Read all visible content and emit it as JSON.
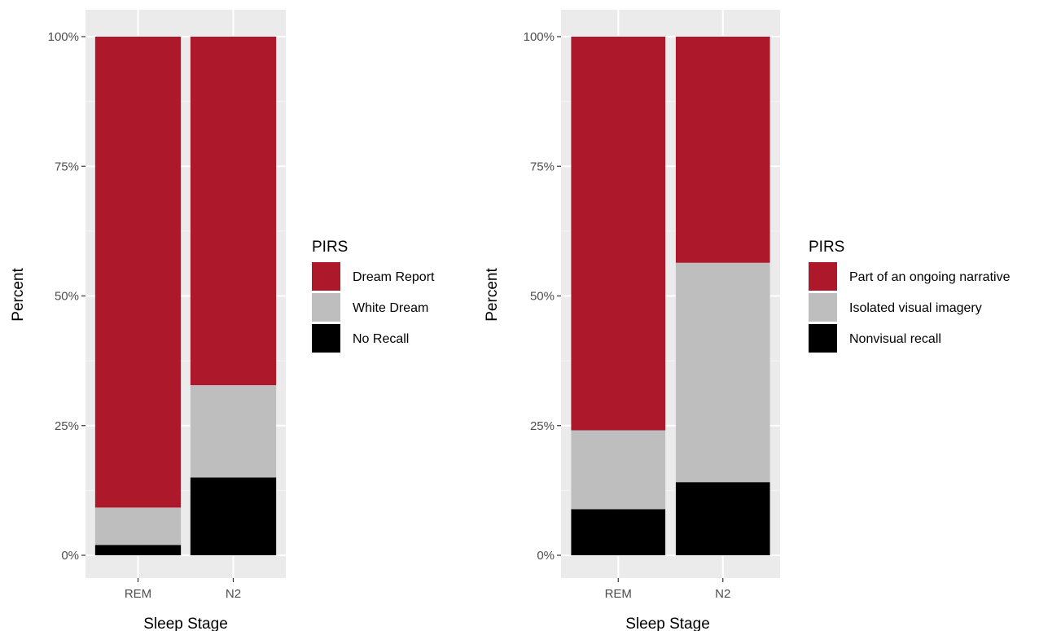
{
  "chart_data": [
    {
      "type": "bar",
      "stacked": true,
      "categories": [
        "REM",
        "N2"
      ],
      "xlabel": "Sleep Stage",
      "ylabel": "Percent",
      "ylim": [
        0,
        100
      ],
      "yticks": [
        0,
        25,
        50,
        75,
        100
      ],
      "ytick_labels": [
        "0%",
        "25%",
        "50%",
        "75%",
        "100%"
      ],
      "grid": true,
      "legend_title": "PIRS",
      "legend_position": "right",
      "series": [
        {
          "name": "Dream Report",
          "color": "#ae182b",
          "values": [
            90.8,
            67.2
          ]
        },
        {
          "name": "White Dream",
          "color": "#bebebe",
          "values": [
            7.2,
            17.8
          ]
        },
        {
          "name": "No Recall",
          "color": "#000000",
          "values": [
            2.0,
            15.0
          ]
        }
      ]
    },
    {
      "type": "bar",
      "stacked": true,
      "categories": [
        "REM",
        "N2"
      ],
      "xlabel": "Sleep Stage",
      "ylabel": "Percent",
      "ylim": [
        0,
        100
      ],
      "yticks": [
        0,
        25,
        50,
        75,
        100
      ],
      "ytick_labels": [
        "0%",
        "25%",
        "50%",
        "75%",
        "100%"
      ],
      "grid": true,
      "legend_title": "PIRS",
      "legend_position": "right",
      "series": [
        {
          "name": "Part of an ongoing narrative",
          "color": "#ae182b",
          "values": [
            75.9,
            43.6
          ]
        },
        {
          "name": "Isolated visual imagery",
          "color": "#bebebe",
          "values": [
            15.2,
            42.3
          ]
        },
        {
          "name": "Nonvisual recall",
          "color": "#000000",
          "values": [
            8.9,
            14.1
          ]
        }
      ]
    }
  ]
}
